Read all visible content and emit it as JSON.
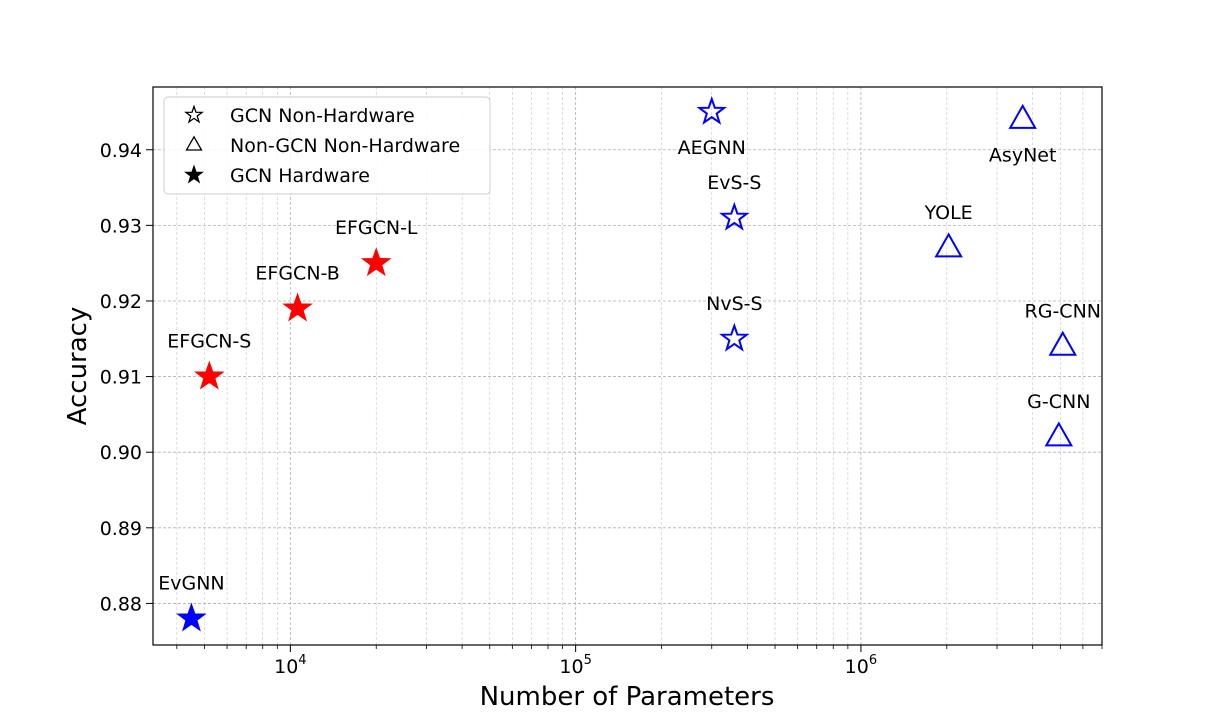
{
  "chart_data": {
    "type": "scatter",
    "xlabel": "Number of Parameters",
    "ylabel": "Accuracy",
    "xscale": "log",
    "xlim": [
      3300,
      7000000
    ],
    "ylim": [
      0.8745,
      0.9483
    ],
    "xticks": [
      {
        "value": 10000,
        "base": "10",
        "exp": "4"
      },
      {
        "value": 100000,
        "base": "10",
        "exp": "5"
      },
      {
        "value": 1000000,
        "base": "10",
        "exp": "6"
      }
    ],
    "yticks": [
      {
        "value": 0.88,
        "label": "0.88"
      },
      {
        "value": 0.89,
        "label": "0.89"
      },
      {
        "value": 0.9,
        "label": "0.90"
      },
      {
        "value": 0.91,
        "label": "0.91"
      },
      {
        "value": 0.92,
        "label": "0.92"
      },
      {
        "value": 0.93,
        "label": "0.93"
      },
      {
        "value": 0.94,
        "label": "0.94"
      }
    ],
    "grid": true,
    "legend_position": "top-left",
    "legend": [
      {
        "label": "GCN Non-Hardware",
        "marker": "star",
        "fill": "none"
      },
      {
        "label": "Non-GCN Non-Hardware",
        "marker": "triangle",
        "fill": "none"
      },
      {
        "label": "GCN Hardware",
        "marker": "star",
        "fill": "black"
      }
    ],
    "points": [
      {
        "label": "AEGNN",
        "x": 300000,
        "y": 0.945,
        "marker": "star",
        "filled": false,
        "color": "#0000ff",
        "label_pos": "below"
      },
      {
        "label": "EvS-S",
        "x": 360000,
        "y": 0.931,
        "marker": "star",
        "filled": false,
        "color": "#0000ff",
        "label_pos": "above"
      },
      {
        "label": "NvS-S",
        "x": 360000,
        "y": 0.915,
        "marker": "star",
        "filled": false,
        "color": "#0000ff",
        "label_pos": "above"
      },
      {
        "label": "AsyNet",
        "x": 3690000,
        "y": 0.944,
        "marker": "triangle",
        "filled": false,
        "color": "#0000ff",
        "label_pos": "below"
      },
      {
        "label": "YOLE",
        "x": 2030000,
        "y": 0.927,
        "marker": "triangle",
        "filled": false,
        "color": "#0000ff",
        "label_pos": "above"
      },
      {
        "label": "RG-CNN",
        "x": 5100000,
        "y": 0.914,
        "marker": "triangle",
        "filled": false,
        "color": "#0000ff",
        "label_pos": "above"
      },
      {
        "label": "G-CNN",
        "x": 4940000,
        "y": 0.902,
        "marker": "triangle",
        "filled": false,
        "color": "#0000ff",
        "label_pos": "above"
      },
      {
        "label": "EFGCN-S",
        "x": 5200,
        "y": 0.91,
        "marker": "star",
        "filled": true,
        "color": "#ff0000",
        "label_pos": "above"
      },
      {
        "label": "EFGCN-B",
        "x": 10600,
        "y": 0.919,
        "marker": "star",
        "filled": true,
        "color": "#ff0000",
        "label_pos": "above"
      },
      {
        "label": "EFGCN-L",
        "x": 20000,
        "y": 0.925,
        "marker": "star",
        "filled": true,
        "color": "#ff0000",
        "label_pos": "above"
      },
      {
        "label": "EvGNN",
        "x": 4500,
        "y": 0.878,
        "marker": "star",
        "filled": true,
        "color": "#0000ff",
        "label_pos": "above"
      }
    ]
  }
}
